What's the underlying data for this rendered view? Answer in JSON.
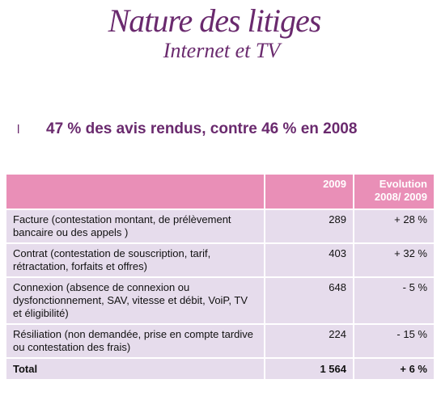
{
  "header": {
    "title": "Nature des litiges",
    "subtitle": "Internet et TV"
  },
  "bullet": {
    "marker": "l",
    "text": "47 % des avis rendus, contre 46 % en 2008"
  },
  "table": {
    "columns": [
      "",
      "2009",
      "Evolution 2008/ 2009"
    ],
    "rows": [
      [
        "Facture (contestation montant, de prélèvement bancaire ou des appels )",
        "289",
        "+ 28 %"
      ],
      [
        "Contrat (contestation de souscription, tarif, rétractation, forfaits et offres)",
        "403",
        "+ 32 %"
      ],
      [
        "Connexion (absence de connexion ou dysfonctionnement, SAV, vitesse et débit, VoiP, TV et éligibilité)",
        "648",
        "- 5 %"
      ],
      [
        "Résiliation (non demandée, prise en compte tardive ou contestation des frais)",
        "224",
        "- 15 %"
      ],
      [
        "Total",
        "1 564",
        "+ 6 %"
      ]
    ]
  }
}
